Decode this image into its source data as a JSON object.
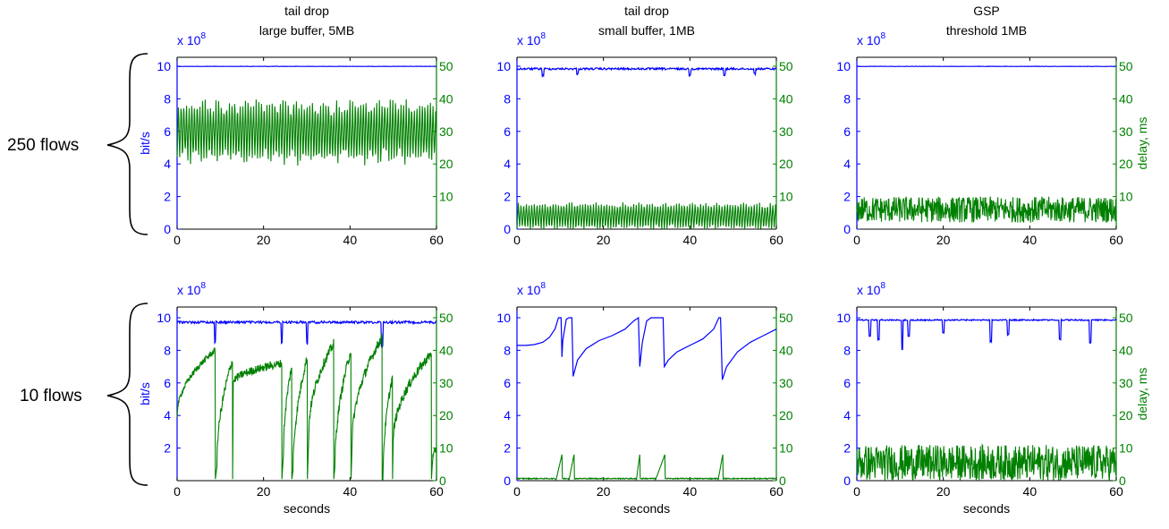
{
  "colors": {
    "throughput": "#0000ff",
    "delay": "#008000",
    "axis": "#000000"
  },
  "chart_data": [
    {
      "type": "line",
      "panel": "r0c0",
      "title": "tail drop",
      "subtitle": "large buffer, 5MB",
      "ylabel_left": "bit/s",
      "ylabel_right": "",
      "xlabel": "",
      "row_label": "250 flows",
      "multiplier": "x 10",
      "exponent": "8",
      "xlim": [
        0,
        60
      ],
      "ylim_left": [
        0,
        10
      ],
      "ylim_right": [
        0,
        50
      ],
      "x_ticks": [
        "0",
        "20",
        "40",
        "60"
      ],
      "y_ticks_left": [
        "0",
        "2",
        "4",
        "6",
        "8",
        "10"
      ],
      "y_ticks_right": [
        "10",
        "20",
        "30",
        "40",
        "50"
      ],
      "series": [
        {
          "axis": "left",
          "color": "#0000ff",
          "model": "flat",
          "level": 10.0,
          "noise": 0.02,
          "dips": []
        },
        {
          "axis": "right",
          "color": "#008000",
          "model": "osc",
          "lo": 21,
          "hi": 39,
          "period": 0.62,
          "noise": 3.0
        }
      ]
    },
    {
      "type": "line",
      "panel": "r0c1",
      "title": "tail drop",
      "subtitle": "small buffer, 1MB",
      "ylabel_left": "",
      "ylabel_right": "",
      "xlabel": "",
      "row_label": "",
      "multiplier": "x 10",
      "exponent": "8",
      "xlim": [
        0,
        60
      ],
      "ylim_left": [
        0,
        10
      ],
      "ylim_right": [
        0,
        50
      ],
      "x_ticks": [
        "0",
        "20",
        "40",
        "60"
      ],
      "y_ticks_left": [
        "0",
        "2",
        "4",
        "6",
        "8",
        "10"
      ],
      "y_ticks_right": [
        "10",
        "20",
        "30",
        "40",
        "50"
      ],
      "series": [
        {
          "axis": "left",
          "color": "#0000ff",
          "model": "flat",
          "level": 9.9,
          "noise": 0.12,
          "dips": [
            [
              6,
              0.4
            ],
            [
              14,
              0.3
            ],
            [
              40,
              0.4
            ],
            [
              48,
              0.4
            ],
            [
              55,
              0.3
            ]
          ]
        },
        {
          "axis": "right",
          "color": "#008000",
          "model": "osc",
          "lo": 0,
          "hi": 8,
          "period": 0.62,
          "noise": 1.0
        }
      ]
    },
    {
      "type": "line",
      "panel": "r0c2",
      "title": "GSP",
      "subtitle": "threshold 1MB",
      "ylabel_left": "",
      "ylabel_right": "delay, ms",
      "xlabel": "",
      "row_label": "",
      "multiplier": "x 10",
      "exponent": "8",
      "xlim": [
        0,
        60
      ],
      "ylim_left": [
        0,
        10
      ],
      "ylim_right": [
        0,
        50
      ],
      "x_ticks": [
        "0",
        "20",
        "40",
        "60"
      ],
      "y_ticks_left": [
        "0",
        "2",
        "4",
        "6",
        "8",
        "10"
      ],
      "y_ticks_right": [
        "10",
        "20",
        "30",
        "40",
        "50"
      ],
      "series": [
        {
          "axis": "left",
          "color": "#0000ff",
          "model": "flat",
          "level": 10.0,
          "noise": 0.02,
          "dips": []
        },
        {
          "axis": "right",
          "color": "#008000",
          "model": "noise",
          "lo": 2,
          "hi": 10,
          "noise": 0
        }
      ]
    },
    {
      "type": "line",
      "panel": "r1c0",
      "title": "",
      "subtitle": "",
      "ylabel_left": "bit/s",
      "ylabel_right": "",
      "xlabel": "seconds",
      "row_label": "10 flows",
      "multiplier": "x 10",
      "exponent": "8",
      "xlim": [
        0,
        60
      ],
      "ylim_left": [
        0,
        11
      ],
      "ylim_right": [
        0,
        55
      ],
      "x_ticks": [
        "0",
        "20",
        "40",
        "60"
      ],
      "y_ticks_left": [
        "2",
        "4",
        "6",
        "8",
        "10"
      ],
      "y_ticks_right": [
        "0",
        "10",
        "20",
        "30",
        "40",
        "50"
      ],
      "series": [
        {
          "axis": "left",
          "color": "#0000ff",
          "model": "flat",
          "level": 9.8,
          "noise": 0.15,
          "dips": [
            [
              8.8,
              1.2
            ],
            [
              24.2,
              1.3
            ],
            [
              30.1,
              1.3
            ],
            [
              47.4,
              1.5
            ]
          ]
        },
        {
          "axis": "right",
          "color": "#008000",
          "model": "saw",
          "segments": [
            [
              0,
              8.8,
              20,
              40,
              1.8
            ],
            [
              9.2,
              12.8,
              5,
              37,
              3
            ],
            [
              13,
              24.2,
              30,
              36,
              2.5
            ],
            [
              24.6,
              26.5,
              8,
              35,
              3
            ],
            [
              26.8,
              30.1,
              2,
              38,
              3
            ],
            [
              30.5,
              36.2,
              15,
              42,
              3
            ],
            [
              36.5,
              40.2,
              4,
              40,
              3
            ],
            [
              40.5,
              47.4,
              12,
              44,
              3
            ],
            [
              47.6,
              49.8,
              0,
              32,
              3
            ],
            [
              50,
              58.8,
              12,
              39,
              3
            ],
            [
              59,
              60,
              5,
              10,
              2
            ]
          ]
        }
      ]
    },
    {
      "type": "line",
      "panel": "r1c1",
      "title": "",
      "subtitle": "",
      "ylabel_left": "",
      "ylabel_right": "",
      "xlabel": "seconds",
      "row_label": "",
      "multiplier": "x 10",
      "exponent": "8",
      "xlim": [
        0,
        60
      ],
      "ylim_left": [
        0,
        11
      ],
      "ylim_right": [
        0,
        55
      ],
      "x_ticks": [
        "0",
        "20",
        "40",
        "60"
      ],
      "y_ticks_left": [
        "0",
        "2",
        "4",
        "6",
        "8",
        "10"
      ],
      "y_ticks_right": [
        "0",
        "10",
        "20",
        "30",
        "40",
        "50"
      ],
      "series": [
        {
          "axis": "left",
          "color": "#0000ff",
          "model": "points",
          "points": [
            [
              0,
              8.3
            ],
            [
              2,
              8.3
            ],
            [
              4,
              8.35
            ],
            [
              6,
              8.5
            ],
            [
              7.5,
              8.8
            ],
            [
              8.8,
              9.3
            ],
            [
              9.6,
              10
            ],
            [
              10.2,
              10
            ],
            [
              10.4,
              7.6
            ],
            [
              10.6,
              8.6
            ],
            [
              11.4,
              9.9
            ],
            [
              12,
              10
            ],
            [
              12.7,
              10
            ],
            [
              13,
              6.4
            ],
            [
              14,
              7.4
            ],
            [
              16,
              8.1
            ],
            [
              19,
              8.6
            ],
            [
              22,
              8.9
            ],
            [
              25,
              9.3
            ],
            [
              27,
              9.8
            ],
            [
              28.1,
              10
            ],
            [
              28.4,
              7.0
            ],
            [
              29,
              8.5
            ],
            [
              30,
              9.8
            ],
            [
              31,
              10
            ],
            [
              33.8,
              10
            ],
            [
              34.1,
              7.0
            ],
            [
              35,
              7.4
            ],
            [
              37,
              7.9
            ],
            [
              40,
              8.3
            ],
            [
              43,
              8.7
            ],
            [
              45.5,
              9.3
            ],
            [
              46.7,
              10
            ],
            [
              47.1,
              10
            ],
            [
              47.5,
              6.2
            ],
            [
              48.5,
              7.0
            ],
            [
              51,
              7.9
            ],
            [
              54,
              8.5
            ],
            [
              57,
              8.9
            ],
            [
              60,
              9.3
            ]
          ]
        },
        {
          "axis": "right",
          "color": "#008000",
          "model": "bumps",
          "base": 0.5,
          "bumps": [
            [
              9.0,
              10.4,
              8
            ],
            [
              12.0,
              13.2,
              8
            ],
            [
              27.6,
              28.4,
              8
            ],
            [
              32.0,
              34.2,
              8
            ],
            [
              46.5,
              47.6,
              8
            ]
          ]
        }
      ]
    },
    {
      "type": "line",
      "panel": "r1c2",
      "title": "",
      "subtitle": "",
      "ylabel_left": "",
      "ylabel_right": "delay, ms",
      "xlabel": "seconds",
      "row_label": "",
      "multiplier": "x 10",
      "exponent": "8",
      "xlim": [
        0,
        60
      ],
      "ylim_left": [
        0,
        11
      ],
      "ylim_right": [
        0,
        55
      ],
      "x_ticks": [
        "0",
        "20",
        "40",
        "60"
      ],
      "y_ticks_left": [
        "0",
        "2",
        "4",
        "6",
        "8",
        "10"
      ],
      "y_ticks_right": [
        "0",
        "10",
        "20",
        "30",
        "40",
        "50"
      ],
      "series": [
        {
          "axis": "left",
          "color": "#0000ff",
          "model": "flat",
          "level": 9.9,
          "noise": 0.08,
          "dips": [
            [
              3,
              1.0
            ],
            [
              5,
              1.2
            ],
            [
              10.5,
              1.8
            ],
            [
              12,
              1.0
            ],
            [
              20,
              0.8
            ],
            [
              31,
              1.3
            ],
            [
              35,
              0.9
            ],
            [
              47,
              1.2
            ],
            [
              54,
              1.4
            ]
          ]
        },
        {
          "axis": "right",
          "color": "#008000",
          "model": "noise",
          "lo": 0,
          "hi": 11,
          "noise": 0
        }
      ]
    }
  ]
}
